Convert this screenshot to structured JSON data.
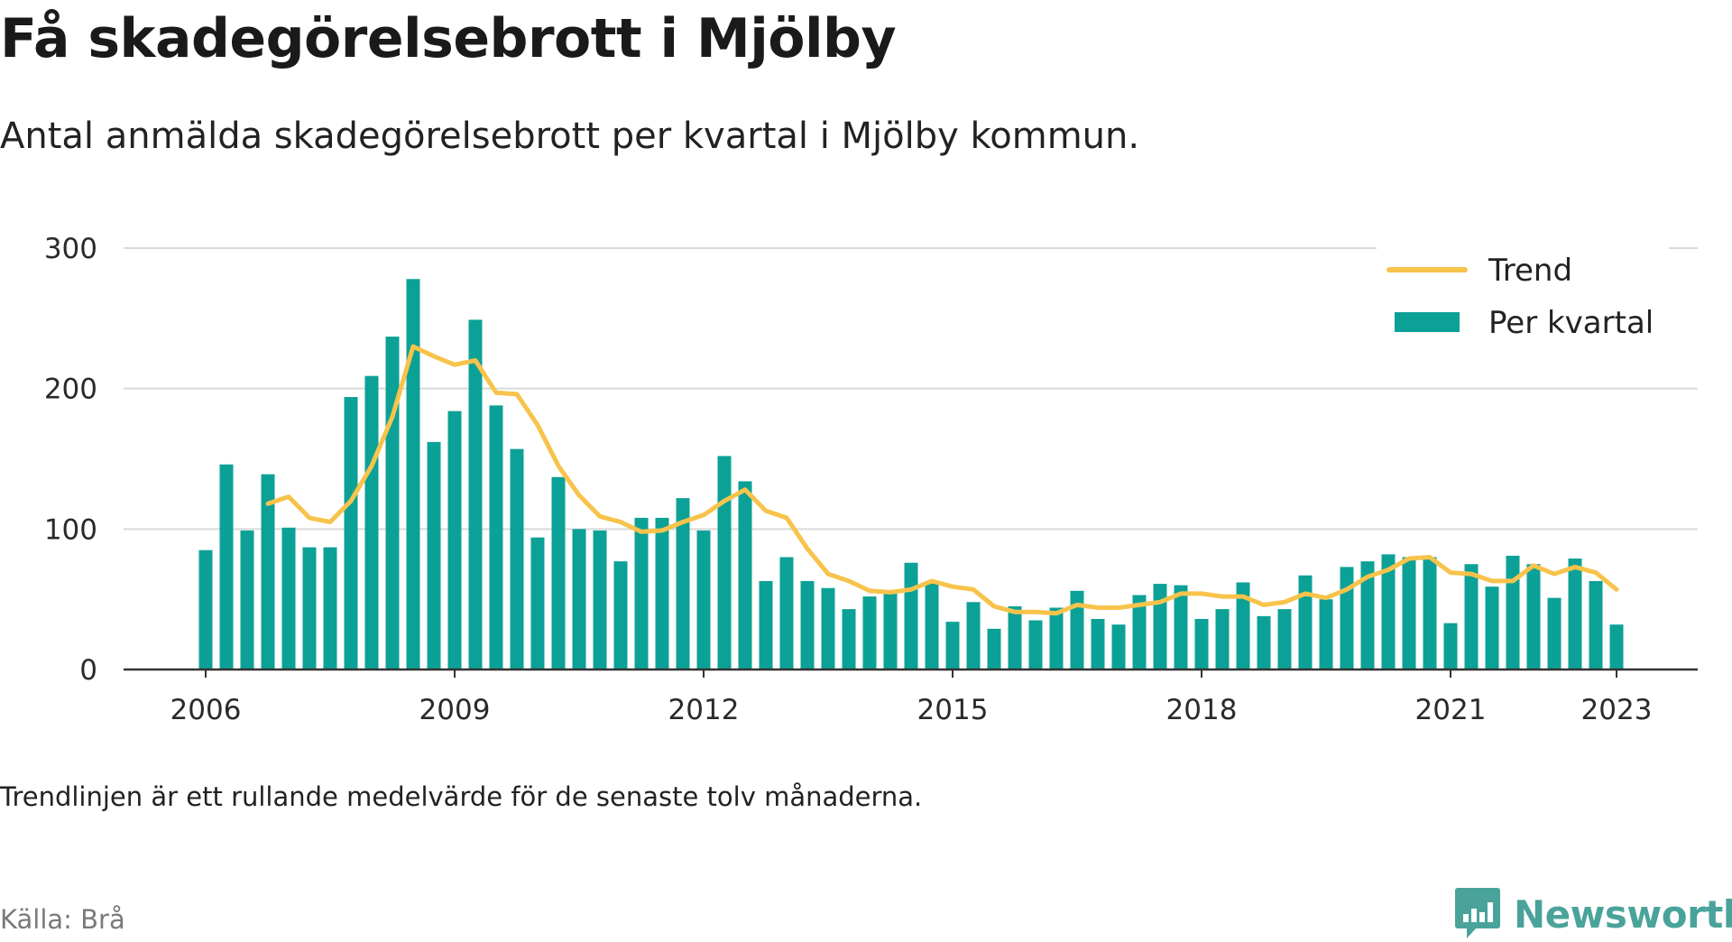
{
  "header": {
    "title": "Få skadegörelsebrott i Mjölby",
    "subtitle": "Antal anmälda skadegörelsebrott per kvartal i Mjölby kommun."
  },
  "footer": {
    "note": "Trendlinjen är ett rullande medelvärde för de senaste tolv månaderna.",
    "source": "Källa: Brå",
    "brand": "Newsworthy"
  },
  "colors": {
    "bars": "#0ca196",
    "trend": "#f7c34b",
    "grid": "#d9d9d9",
    "axis": "#333333",
    "brand": "#4aa39a"
  },
  "chart_data": {
    "type": "bar",
    "ylim": [
      0,
      300
    ],
    "yticks": [
      "0",
      "100",
      "200",
      "300"
    ],
    "xticks": [
      "2006",
      "2009",
      "2012",
      "2015",
      "2018",
      "2021",
      "2023"
    ],
    "grid": true,
    "legend_position": "top-right",
    "legend": [
      "Trend",
      "Per kvartal"
    ],
    "x": [
      "2006 Q1",
      "2006 Q2",
      "2006 Q3",
      "2006 Q4",
      "2007 Q1",
      "2007 Q2",
      "2007 Q3",
      "2007 Q4",
      "2008 Q1",
      "2008 Q2",
      "2008 Q3",
      "2008 Q4",
      "2009 Q1",
      "2009 Q2",
      "2009 Q3",
      "2009 Q4",
      "2010 Q1",
      "2010 Q2",
      "2010 Q3",
      "2010 Q4",
      "2011 Q1",
      "2011 Q2",
      "2011 Q3",
      "2011 Q4",
      "2012 Q1",
      "2012 Q2",
      "2012 Q3",
      "2012 Q4",
      "2013 Q1",
      "2013 Q2",
      "2013 Q3",
      "2013 Q4",
      "2014 Q1",
      "2014 Q2",
      "2014 Q3",
      "2014 Q4",
      "2015 Q1",
      "2015 Q2",
      "2015 Q3",
      "2015 Q4",
      "2016 Q1",
      "2016 Q2",
      "2016 Q3",
      "2016 Q4",
      "2017 Q1",
      "2017 Q2",
      "2017 Q3",
      "2017 Q4",
      "2018 Q1",
      "2018 Q2",
      "2018 Q3",
      "2018 Q4",
      "2019 Q1",
      "2019 Q2",
      "2019 Q3",
      "2019 Q4",
      "2020 Q1",
      "2020 Q2",
      "2020 Q3",
      "2020 Q4",
      "2021 Q1",
      "2021 Q2",
      "2021 Q3",
      "2021 Q4",
      "2022 Q1",
      "2022 Q2",
      "2022 Q3",
      "2022 Q4",
      "2023 Q1"
    ],
    "series": [
      {
        "name": "Per kvartal",
        "type": "bar",
        "values": [
          85,
          146,
          99,
          139,
          101,
          87,
          87,
          194,
          209,
          237,
          278,
          162,
          184,
          249,
          188,
          157,
          94,
          137,
          100,
          99,
          77,
          108,
          108,
          122,
          99,
          152,
          134,
          63,
          80,
          63,
          58,
          43,
          52,
          56,
          76,
          62,
          34,
          48,
          29,
          45,
          35,
          44,
          56,
          36,
          32,
          53,
          61,
          60,
          36,
          43,
          62,
          38,
          43,
          67,
          50,
          73,
          77,
          82,
          80,
          80,
          33,
          75,
          59,
          81,
          75,
          51,
          79,
          63,
          32
        ]
      },
      {
        "name": "Trend",
        "type": "line",
        "values": [
          null,
          null,
          null,
          118,
          123,
          108,
          105,
          120,
          145,
          180,
          230,
          223,
          217,
          220,
          197,
          196,
          174,
          145,
          124,
          109,
          105,
          98,
          99,
          105,
          110,
          120,
          128,
          113,
          108,
          86,
          68,
          63,
          56,
          55,
          57,
          63,
          59,
          57,
          45,
          41,
          41,
          40,
          46,
          44,
          44,
          46,
          48,
          54,
          54,
          52,
          52,
          46,
          48,
          54,
          51,
          57,
          66,
          71,
          79,
          80,
          69,
          68,
          63,
          63,
          74,
          68,
          73,
          69,
          57
        ]
      }
    ]
  }
}
